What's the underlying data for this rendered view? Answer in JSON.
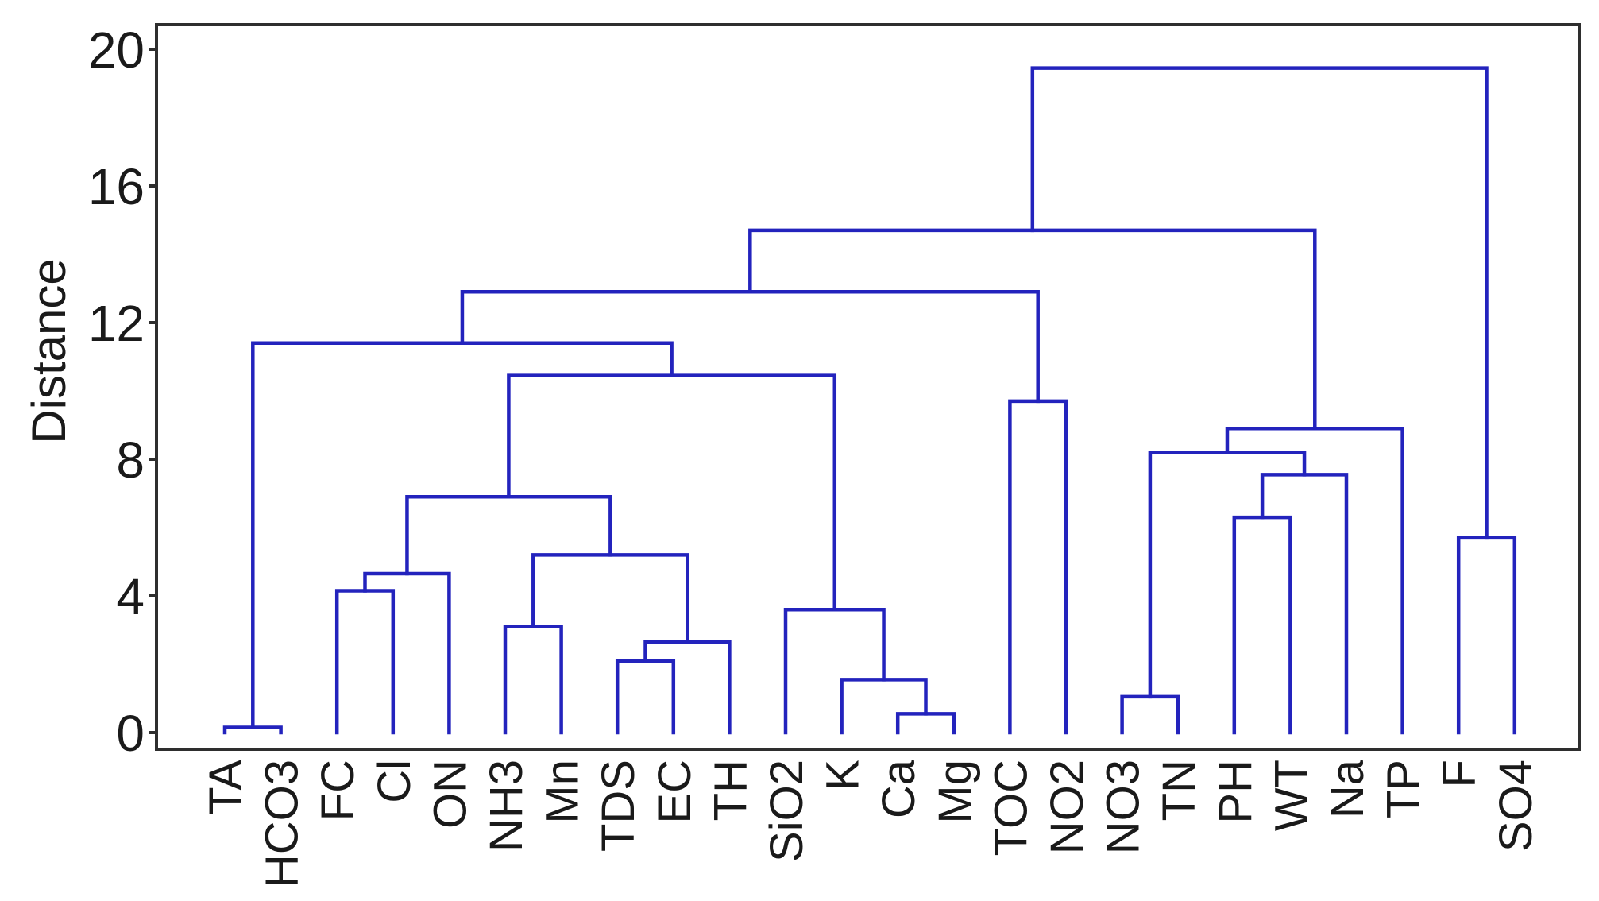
{
  "figure": {
    "kind": "cluster-dendrogram",
    "background": "#ffffff"
  },
  "chart_data": {
    "type": "dendrogram",
    "title": "",
    "xlabel": "",
    "ylabel": "Distance",
    "ylim": [
      0,
      20.7
    ],
    "yticks": [
      0,
      4,
      8,
      12,
      16,
      20
    ],
    "grid": false,
    "legend": "none",
    "line_color": "#2323bd",
    "frame_color": "#2e2e2e",
    "text_color": "#1a1a1a",
    "leaves": [
      "TA",
      "HCO3",
      "FC",
      "Cl",
      "ON",
      "NH3",
      "Mn",
      "TDS",
      "EC",
      "TH",
      "SiO2",
      "K",
      "Ca",
      "Mg",
      "TOC",
      "NO2",
      "NO3",
      "TN",
      "PH",
      "WT",
      "Na",
      "TP",
      "F",
      "SO4"
    ],
    "merges_note": "each merge = [left child, right child, distance]; '#i' refers to the i-th merge cluster (0-based)",
    "merges": [
      [
        "TA",
        "HCO3",
        0.15
      ],
      [
        "Ca",
        "Mg",
        0.55
      ],
      [
        "NO3",
        "TN",
        1.05
      ],
      [
        "K",
        "#1",
        1.55
      ],
      [
        "TDS",
        "EC",
        2.1
      ],
      [
        "#4",
        "TH",
        2.65
      ],
      [
        "NH3",
        "Mn",
        3.1
      ],
      [
        "SiO2",
        "#3",
        3.6
      ],
      [
        "FC",
        "Cl",
        4.15
      ],
      [
        "#8",
        "ON",
        4.65
      ],
      [
        "#6",
        "#5",
        5.2
      ],
      [
        "F",
        "SO4",
        5.7
      ],
      [
        "PH",
        "WT",
        6.3
      ],
      [
        "#9",
        "#10",
        6.9
      ],
      [
        "#12",
        "Na",
        7.55
      ],
      [
        "#2",
        "#14",
        8.2
      ],
      [
        "#15",
        "TP",
        8.9
      ],
      [
        "TOC",
        "NO2",
        9.7
      ],
      [
        "#13",
        "#7",
        10.45
      ],
      [
        "#0",
        "#18",
        11.4
      ],
      [
        "#19",
        "#17",
        12.9
      ],
      [
        "#20",
        "#16",
        14.7
      ],
      [
        "#21",
        "#11",
        19.45
      ]
    ]
  }
}
